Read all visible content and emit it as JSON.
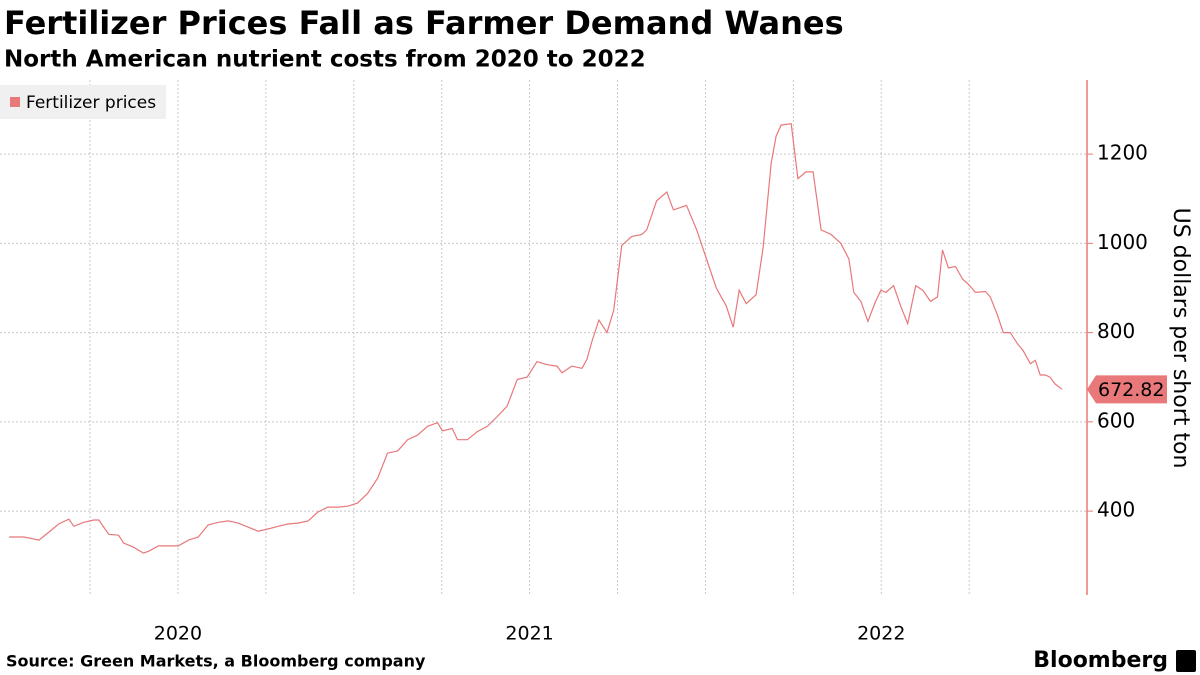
{
  "chart_data": {
    "type": "line",
    "title": "Fertilizer Prices Fall as Farmer Demand Wanes",
    "subtitle": "North American nutrient costs from 2020 to 2022",
    "y_label": "US dollars per short ton",
    "source": "Source: Green Markets, a Bloomberg company",
    "logo": "Bloomberg",
    "legend": "upper left",
    "grid": true,
    "xlim": [
      2019.994,
      2023.085
    ],
    "ylim": [
      212,
      1366
    ],
    "yticks": [
      400,
      600,
      800,
      1000,
      1200
    ],
    "xticks": [
      {
        "value": 2020.5,
        "label": "2020"
      },
      {
        "value": 2021.5,
        "label": "2021"
      },
      {
        "value": 2022.5,
        "label": "2022"
      }
    ],
    "xgrid": [
      2020.25,
      2020.5,
      2020.75,
      2021.0,
      2021.25,
      2021.5,
      2021.75,
      2022.0,
      2022.25,
      2022.5,
      2022.75
    ],
    "x": [
      2020.02,
      2020.062,
      2020.105,
      2020.133,
      2020.161,
      2020.19,
      2020.204,
      2020.232,
      2020.261,
      2020.275,
      2020.303,
      2020.331,
      2020.346,
      2020.374,
      2020.402,
      2020.416,
      2020.445,
      2020.473,
      2020.501,
      2020.53,
      2020.558,
      2020.586,
      2020.615,
      2020.643,
      2020.671,
      2020.7,
      2020.728,
      2020.756,
      2020.785,
      2020.813,
      2020.841,
      2020.87,
      2020.898,
      2020.926,
      2020.955,
      2020.983,
      2021.011,
      2021.04,
      2021.068,
      2021.096,
      2021.125,
      2021.153,
      2021.181,
      2021.21,
      2021.238,
      2021.252,
      2021.28,
      2021.295,
      2021.323,
      2021.351,
      2021.38,
      2021.408,
      2021.436,
      2021.465,
      2021.493,
      2021.521,
      2021.55,
      2021.578,
      2021.592,
      2021.62,
      2021.649,
      2021.663,
      2021.677,
      2021.697,
      2021.72,
      2021.739,
      2021.762,
      2021.79,
      2021.819,
      2021.833,
      2021.861,
      2021.89,
      2021.909,
      2021.946,
      2021.975,
      2022.003,
      2022.031,
      2022.059,
      2022.079,
      2022.096,
      2022.116,
      2022.144,
      2022.164,
      2022.187,
      2022.201,
      2022.215,
      2022.244,
      2022.263,
      2022.286,
      2022.306,
      2022.329,
      2022.357,
      2022.385,
      2022.408,
      2022.422,
      2022.442,
      2022.462,
      2022.484,
      2022.499,
      2022.513,
      2022.535,
      2022.555,
      2022.575,
      2022.598,
      2022.618,
      2022.64,
      2022.66,
      2022.674,
      2022.691,
      2022.711,
      2022.731,
      2022.748,
      2022.768,
      2022.796,
      2022.81,
      2022.83,
      2022.847,
      2022.867,
      2022.887,
      2022.903,
      2022.924,
      2022.938,
      2022.952,
      2022.966,
      2022.98,
      2022.994,
      2023.014
    ],
    "series": [
      {
        "name": "Fertilizer prices",
        "color": "#e8787a",
        "values": [
          342,
          342,
          335,
          353,
          371,
          382,
          366,
          375,
          380,
          380,
          348,
          346,
          328,
          319,
          306,
          310,
          322,
          322,
          322,
          335,
          342,
          369,
          375,
          378,
          373,
          364,
          355,
          360,
          366,
          371,
          373,
          378,
          398,
          409,
          409,
          411,
          418,
          440,
          474,
          530,
          535,
          560,
          570,
          590,
          598,
          580,
          585,
          560,
          560,
          578,
          590,
          612,
          635,
          695,
          700,
          735,
          728,
          725,
          710,
          725,
          720,
          740,
          780,
          828,
          800,
          850,
          995,
          1015,
          1020,
          1030,
          1095,
          1115,
          1075,
          1085,
          1030,
          965,
          900,
          860,
          812,
          895,
          865,
          885,
          990,
          1180,
          1240,
          1265,
          1268,
          1145,
          1160,
          1160,
          1030,
          1020,
          1000,
          965,
          890,
          870,
          825,
          870,
          895,
          890,
          905,
          860,
          820,
          905,
          895,
          870,
          880,
          985,
          945,
          948,
          920,
          908,
          890,
          892,
          880,
          840,
          800,
          800,
          775,
          760,
          730,
          738,
          705,
          705,
          700,
          685,
          672.82
        ]
      }
    ]
  }
}
